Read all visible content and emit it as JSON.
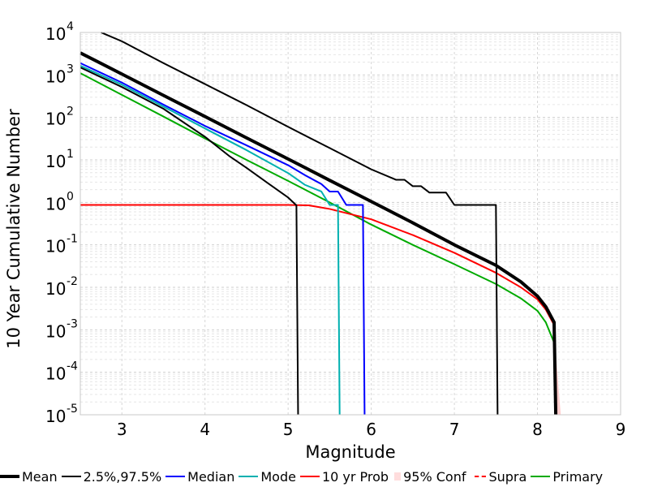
{
  "chart_data": {
    "type": "line",
    "xlabel": "Magnitude",
    "ylabel": "10 Year Cumulative Number",
    "xlim": [
      2.5,
      9
    ],
    "ylim": [
      1e-05,
      10000.0
    ],
    "yscale": "log",
    "grid": true,
    "legend_position": "bottom",
    "xticks": [
      "3",
      "4",
      "5",
      "6",
      "7",
      "8",
      "9"
    ],
    "yticks": [
      {
        "base": "10",
        "exp": "-5",
        "value": 1e-05
      },
      {
        "base": "10",
        "exp": "-4",
        "value": 0.0001
      },
      {
        "base": "10",
        "exp": "-3",
        "value": 0.001
      },
      {
        "base": "10",
        "exp": "-2",
        "value": 0.01
      },
      {
        "base": "10",
        "exp": "-1",
        "value": 0.1
      },
      {
        "base": "10",
        "exp": "0",
        "value": 1
      },
      {
        "base": "10",
        "exp": "1",
        "value": 10
      },
      {
        "base": "10",
        "exp": "2",
        "value": 100
      },
      {
        "base": "10",
        "exp": "3",
        "value": 1000
      },
      {
        "base": "10",
        "exp": "4",
        "value": 10000
      }
    ],
    "series": [
      {
        "name": "Mean",
        "color": "#000000",
        "style": "solid",
        "points": [
          [
            2.5,
            3300
          ],
          [
            3,
            1050
          ],
          [
            3.5,
            330
          ],
          [
            4,
            105
          ],
          [
            4.5,
            33
          ],
          [
            5,
            10.5
          ],
          [
            5.5,
            3.3
          ],
          [
            6,
            1.05
          ],
          [
            6.5,
            0.33
          ],
          [
            7,
            0.1
          ],
          [
            7.5,
            0.033
          ],
          [
            7.8,
            0.0135
          ],
          [
            8,
            0.0062
          ],
          [
            8.1,
            0.0035
          ],
          [
            8.2,
            0.0015
          ],
          [
            8.22,
            1e-05
          ]
        ]
      },
      {
        "name": "2.5%,97.5%",
        "color": "#000000",
        "style": "solid",
        "points": [
          [
            2.75,
            10000
          ],
          [
            3,
            6200
          ],
          [
            3.5,
            1900
          ],
          [
            4,
            610
          ],
          [
            4.5,
            195
          ],
          [
            5,
            60
          ],
          [
            5.5,
            19
          ],
          [
            5.8,
            9.5
          ],
          [
            6,
            6
          ],
          [
            6.3,
            3.4
          ],
          [
            6.4,
            3.4
          ],
          [
            6.5,
            2.4
          ],
          [
            6.6,
            2.4
          ],
          [
            6.7,
            1.7
          ],
          [
            6.9,
            1.7
          ],
          [
            7,
            0.87
          ],
          [
            7.5,
            0.87
          ],
          [
            7.52,
            1e-05
          ]
        ]
      },
      {
        "name": "2.5%,97.5%",
        "color": "#000000",
        "style": "solid",
        "points": [
          [
            2.5,
            1500
          ],
          [
            3,
            520
          ],
          [
            3.5,
            160
          ],
          [
            4,
            35
          ],
          [
            4.3,
            12
          ],
          [
            4.5,
            6.5
          ],
          [
            4.75,
            2.9
          ],
          [
            5,
            1.3
          ],
          [
            5.1,
            0.85
          ],
          [
            5.12,
            1e-05
          ]
        ]
      },
      {
        "name": "Median",
        "color": "#0000ff",
        "style": "solid",
        "points": [
          [
            2.5,
            1900
          ],
          [
            3,
            660
          ],
          [
            3.5,
            200
          ],
          [
            4,
            63
          ],
          [
            4.5,
            22
          ],
          [
            5,
            7.5
          ],
          [
            5.2,
            4.4
          ],
          [
            5.4,
            2.7
          ],
          [
            5.5,
            1.8
          ],
          [
            5.6,
            1.8
          ],
          [
            5.7,
            0.87
          ],
          [
            5.9,
            0.87
          ],
          [
            5.92,
            1e-05
          ]
        ]
      },
      {
        "name": "Mode",
        "color": "#00b0b0",
        "style": "solid",
        "points": [
          [
            2.5,
            1650
          ],
          [
            3,
            590
          ],
          [
            3.5,
            180
          ],
          [
            4,
            55
          ],
          [
            4.5,
            17
          ],
          [
            5,
            4.9
          ],
          [
            5.2,
            2.6
          ],
          [
            5.4,
            1.8
          ],
          [
            5.5,
            0.87
          ],
          [
            5.6,
            0.87
          ],
          [
            5.62,
            1e-05
          ]
        ]
      },
      {
        "name": "10 yr Prob",
        "color": "#ff0000",
        "style": "solid",
        "points": [
          [
            2.5,
            0.87
          ],
          [
            5,
            0.87
          ],
          [
            5.25,
            0.85
          ],
          [
            5.5,
            0.7
          ],
          [
            6,
            0.4
          ],
          [
            6.5,
            0.17
          ],
          [
            7,
            0.065
          ],
          [
            7.5,
            0.022
          ],
          [
            7.8,
            0.01
          ],
          [
            8,
            0.0052
          ],
          [
            8.1,
            0.003
          ],
          [
            8.2,
            0.0013
          ],
          [
            8.22,
            1e-05
          ]
        ]
      },
      {
        "name": "95% Conf",
        "color": "#ffcccc",
        "style": "band",
        "points": [
          [
            8.2,
            0.0015
          ],
          [
            8.22,
            0.0003
          ],
          [
            8.26,
            3e-05
          ],
          [
            8.28,
            1e-05
          ]
        ]
      },
      {
        "name": "Supra",
        "color": "#ff0000",
        "style": "dashed",
        "points": []
      },
      {
        "name": "Primary",
        "color": "#00aa00",
        "style": "solid",
        "points": [
          [
            2.5,
            1100
          ],
          [
            3,
            340
          ],
          [
            3.5,
            105
          ],
          [
            4,
            32
          ],
          [
            4.5,
            10
          ],
          [
            5,
            3.2
          ],
          [
            5.5,
            1.0
          ],
          [
            6,
            0.3
          ],
          [
            6.5,
            0.1
          ],
          [
            7,
            0.035
          ],
          [
            7.5,
            0.012
          ],
          [
            7.8,
            0.0055
          ],
          [
            8,
            0.0028
          ],
          [
            8.1,
            0.0015
          ],
          [
            8.2,
            0.0005
          ]
        ]
      }
    ]
  },
  "legend": [
    {
      "label": "Mean",
      "color": "#000000",
      "weight": 4,
      "style": "solid"
    },
    {
      "label": "2.5%,97.5%",
      "color": "#000000",
      "weight": 2,
      "style": "solid"
    },
    {
      "label": "Median",
      "color": "#0000ff",
      "weight": 2,
      "style": "solid"
    },
    {
      "label": "Mode",
      "color": "#00b0b0",
      "weight": 2,
      "style": "solid"
    },
    {
      "label": "10 yr Prob",
      "color": "#ff0000",
      "weight": 2,
      "style": "solid"
    },
    {
      "label": "95% Conf",
      "color": "#ffdddd",
      "weight": 10,
      "style": "solid"
    },
    {
      "label": "Supra",
      "color": "#ff0000",
      "weight": 2,
      "style": "dashed"
    },
    {
      "label": "Primary",
      "color": "#00aa00",
      "weight": 2,
      "style": "solid"
    }
  ]
}
